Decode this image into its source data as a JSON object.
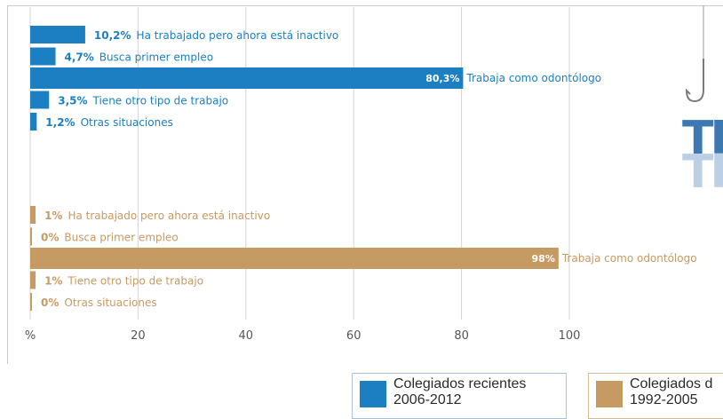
{
  "chart_data": {
    "type": "bar",
    "orientation": "horizontal",
    "xlim": [
      0,
      100
    ],
    "x_ticks": [
      "%",
      "20",
      "40",
      "60",
      "80",
      "100"
    ],
    "grid": true,
    "series": [
      {
        "name": "Colegiados recientes 2006-2012",
        "color": "#1b7fc1",
        "items": [
          {
            "label": "Ha trabajado pero ahora está inactivo",
            "value": 10.2,
            "value_label": "10,2%"
          },
          {
            "label": "Busca primer empleo",
            "value": 4.7,
            "value_label": "4,7%"
          },
          {
            "label": "Trabaja como odontólogo",
            "value": 80.3,
            "value_label": "80,3%"
          },
          {
            "label": "Tiene otro tipo de trabajo",
            "value": 3.5,
            "value_label": "3,5%"
          },
          {
            "label": "Otras situaciones",
            "value": 1.2,
            "value_label": "1,2%"
          }
        ]
      },
      {
        "name": "Colegiados 1992-2005",
        "color": "#c69a63",
        "items": [
          {
            "label": "Ha trabajado pero ahora está inactivo",
            "value": 1,
            "value_label": "1%"
          },
          {
            "label": "Busca primer empleo",
            "value": 0,
            "value_label": "0%"
          },
          {
            "label": "Trabaja como odontólogo",
            "value": 98,
            "value_label": "98%"
          },
          {
            "label": "Tiene otro tipo de trabajo",
            "value": 1,
            "value_label": "1%"
          },
          {
            "label": "Otras situaciones",
            "value": 0,
            "value_label": "0%"
          }
        ]
      }
    ]
  },
  "legend": [
    {
      "line1": "Colegiados recientes",
      "line2": "2006-2012",
      "color": "#1b7fc1"
    },
    {
      "line1": "Colegiados d",
      "line2": "1992-2005",
      "color": "#c69a63"
    }
  ],
  "decoration": {
    "letters": "TR",
    "icon": "fish-hook-icon"
  }
}
